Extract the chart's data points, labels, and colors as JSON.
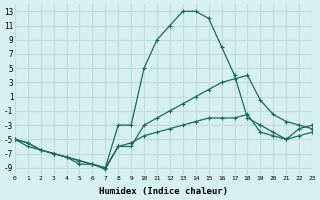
{
  "background_color": "#d6f0ee",
  "grid_color": "#c0ddd9",
  "line_color": "#1a6b5a",
  "xlabel": "Humidex (Indice chaleur)",
  "xlim": [
    0,
    23
  ],
  "ylim": [
    -10,
    14
  ],
  "yticks": [
    13,
    11,
    9,
    7,
    5,
    3,
    1,
    -1,
    -3,
    -5,
    -7,
    -9
  ],
  "xticks": [
    0,
    1,
    2,
    3,
    4,
    5,
    6,
    7,
    8,
    9,
    10,
    11,
    12,
    13,
    14,
    15,
    16,
    17,
    18,
    19,
    20,
    21,
    22,
    23
  ],
  "line1_x": [
    0,
    1,
    2,
    3,
    4,
    5,
    6,
    7,
    8,
    9,
    10,
    11,
    12,
    13,
    14,
    15,
    16,
    17,
    18,
    19,
    20,
    21,
    22,
    23
  ],
  "line1_y": [
    -5,
    -6,
    -6.5,
    -7,
    -7.5,
    -8,
    -8.5,
    -9,
    -3,
    -3,
    5,
    9,
    11,
    13,
    13,
    12,
    8,
    4,
    -2,
    -3,
    -4,
    -5,
    -3.5,
    -3
  ],
  "line2_x": [
    0,
    1,
    2,
    3,
    4,
    5,
    6,
    7,
    8,
    9,
    10,
    11,
    12,
    13,
    14,
    15,
    16,
    17,
    18,
    19,
    20,
    21,
    22,
    23
  ],
  "line2_y": [
    -5,
    -5.5,
    -6.5,
    -7,
    -7.5,
    -8.5,
    -8.5,
    -9.2,
    -6,
    -6,
    -3,
    -2,
    -1,
    0,
    1,
    2,
    3,
    3.5,
    4,
    0.5,
    -1.5,
    -2.5,
    -3,
    -3.5
  ],
  "line3_x": [
    0,
    1,
    2,
    3,
    4,
    5,
    6,
    7,
    8,
    9,
    10,
    11,
    12,
    13,
    14,
    15,
    16,
    17,
    18,
    19,
    20,
    21,
    22,
    23
  ],
  "line3_y": [
    -5,
    -5.5,
    -6.5,
    -7,
    -7.5,
    -8,
    -8.5,
    -9,
    -6,
    -5.5,
    -4.5,
    -4,
    -3.5,
    -3,
    -2.5,
    -2,
    -2,
    -2,
    -1.5,
    -4,
    -4.5,
    -5,
    -4.5,
    -4
  ]
}
